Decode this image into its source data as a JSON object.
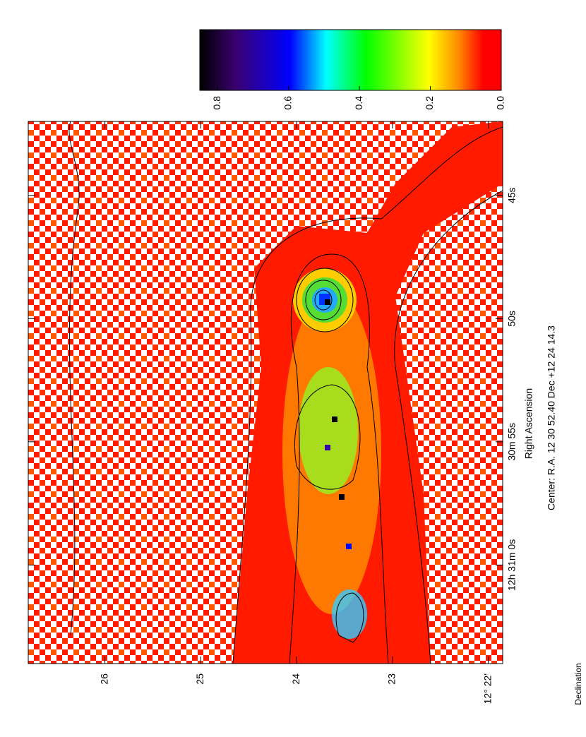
{
  "chart_data": {
    "type": "image",
    "xlabel": "Right Ascension",
    "ylabel": "Declination",
    "annotation": "Center:  R.A.  12 30 52.40   Dec  +12 24 14.3",
    "xlim": [
      64,
      42
    ],
    "xticks": [
      {
        "value": 60,
        "label": "12h 31m 0s"
      },
      {
        "value": 55,
        "label": "30m 55s"
      },
      {
        "value": 50,
        "label": "50s"
      },
      {
        "value": 45,
        "label": "45s"
      }
    ],
    "ylim": [
      21.85,
      26.8
    ],
    "yticks": [
      {
        "value": 22,
        "label": "12° 22'"
      },
      23,
      24,
      25,
      26
    ],
    "colorbar": {
      "lim": [
        0,
        0.85
      ],
      "ticks": [
        {
          "value": 0,
          "label": "0.0"
        },
        0.2,
        0.4,
        0.6,
        0.8
      ]
    }
  }
}
